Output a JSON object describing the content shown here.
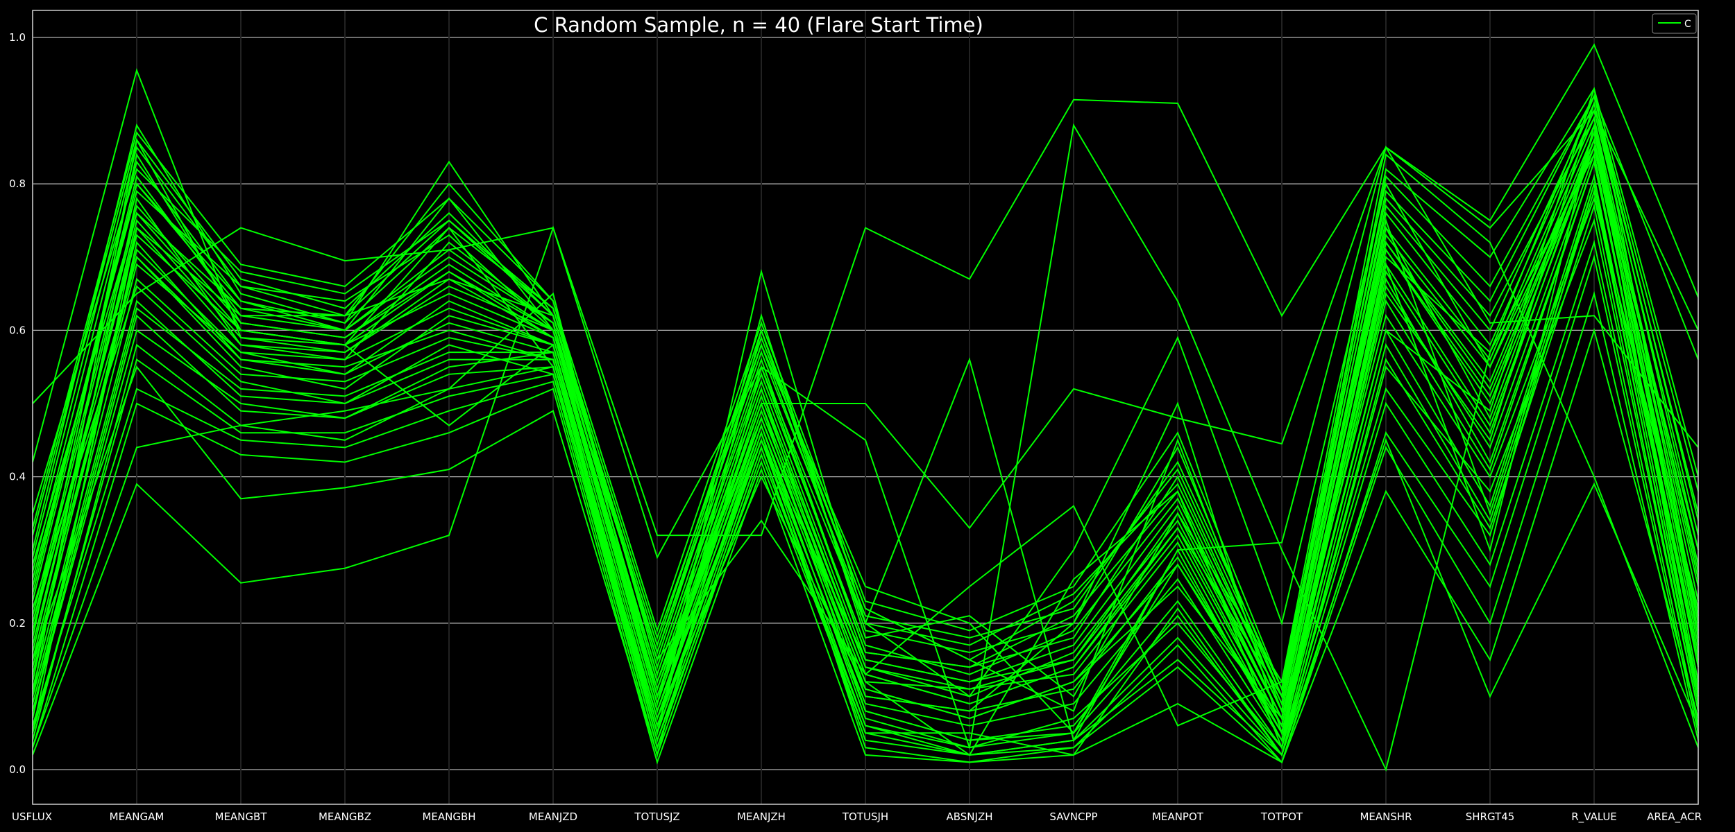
{
  "chart_data": {
    "type": "line",
    "subtype": "parallel-coordinates",
    "title": "C Random Sample, n = 40 (Flare Start Time)",
    "xlabel": "",
    "ylabel": "",
    "ylim": [
      -0.05,
      1.04
    ],
    "yticks": [
      0.0,
      0.2,
      0.4,
      0.6,
      0.8,
      1.0
    ],
    "ytick_labels": [
      "0.0",
      "0.2",
      "0.4",
      "0.6",
      "0.8",
      "1.0"
    ],
    "grid": "horizontal",
    "legend": {
      "placement": "top-right",
      "entries": [
        "C"
      ]
    },
    "colors": {
      "background": "#000000",
      "line": "#00ff00",
      "text": "#ffffff",
      "grid": "#b0b0b0",
      "axis_line": "#222222"
    },
    "categories": [
      "USFLUX",
      "MEANGAM",
      "MEANGBT",
      "MEANGBZ",
      "MEANGBH",
      "MEANJZD",
      "TOTUSJZ",
      "MEANJZH",
      "TOTUSJH",
      "ABSNJZH",
      "SAVNCPP",
      "MEANPOT",
      "TOTPOT",
      "MEANSHR",
      "SHRGT45",
      "R_VALUE",
      "AREA_ACR"
    ],
    "series": [
      {
        "class": "C",
        "values": [
          0.5,
          0.65,
          0.74,
          0.695,
          0.71,
          0.74,
          0.32,
          0.32,
          0.74,
          0.67,
          0.915,
          0.91,
          0.62,
          0.85,
          0.75,
          0.99,
          0.645
        ]
      },
      {
        "class": "C",
        "values": [
          0.03,
          0.44,
          0.47,
          0.49,
          0.52,
          0.65,
          0.1,
          0.5,
          0.5,
          0.33,
          0.52,
          0.48,
          0.445,
          0.85,
          0.74,
          0.9,
          0.6
        ]
      },
      {
        "class": "C",
        "values": [
          0.02,
          0.39,
          0.255,
          0.275,
          0.32,
          0.74,
          0.29,
          0.55,
          0.45,
          0.03,
          0.88,
          0.64,
          0.3,
          0.0,
          0.57,
          0.92,
          0.56
        ]
      },
      {
        "class": "C",
        "values": [
          0.42,
          0.955,
          0.59,
          0.58,
          0.47,
          0.58,
          0.05,
          0.68,
          0.2,
          0.56,
          0.04,
          0.3,
          0.31,
          0.85,
          0.61,
          0.62,
          0.44
        ]
      },
      {
        "class": "C",
        "values": [
          0.3,
          0.88,
          0.65,
          0.61,
          0.83,
          0.62,
          0.15,
          0.34,
          0.13,
          0.25,
          0.36,
          0.06,
          0.12,
          0.84,
          0.72,
          0.4,
          0.03
        ]
      },
      {
        "class": "C",
        "values": [
          0.15,
          0.55,
          0.37,
          0.385,
          0.41,
          0.49,
          0.02,
          0.55,
          0.2,
          0.1,
          0.3,
          0.59,
          0.2,
          0.8,
          0.55,
          0.85,
          0.3
        ]
      },
      {
        "class": "C",
        "values": [
          0.25,
          0.8,
          0.64,
          0.6,
          0.78,
          0.6,
          0.1,
          0.52,
          0.1,
          0.08,
          0.2,
          0.5,
          0.05,
          0.6,
          0.49,
          0.93,
          0.2
        ]
      },
      {
        "class": "C",
        "values": [
          0.1,
          0.86,
          0.6,
          0.58,
          0.74,
          0.55,
          0.05,
          0.6,
          0.22,
          0.15,
          0.08,
          0.45,
          0.08,
          0.75,
          0.35,
          0.8,
          0.15
        ]
      },
      {
        "class": "C",
        "values": [
          0.05,
          0.74,
          0.62,
          0.62,
          0.67,
          0.62,
          0.12,
          0.48,
          0.12,
          0.02,
          0.26,
          0.38,
          0.03,
          0.69,
          0.3,
          0.88,
          0.1
        ]
      },
      {
        "class": "C",
        "values": [
          0.2,
          0.7,
          0.55,
          0.52,
          0.62,
          0.58,
          0.08,
          0.45,
          0.15,
          0.12,
          0.15,
          0.33,
          0.1,
          0.72,
          0.52,
          0.86,
          0.25
        ]
      },
      {
        "class": "C",
        "values": [
          0.35,
          0.82,
          0.68,
          0.65,
          0.75,
          0.63,
          0.18,
          0.58,
          0.25,
          0.2,
          0.05,
          0.28,
          0.06,
          0.65,
          0.45,
          0.91,
          0.35
        ]
      },
      {
        "class": "C",
        "values": [
          0.08,
          0.6,
          0.5,
          0.48,
          0.55,
          0.57,
          0.04,
          0.42,
          0.05,
          0.05,
          0.02,
          0.22,
          0.02,
          0.55,
          0.38,
          0.75,
          0.08
        ]
      },
      {
        "class": "C",
        "values": [
          0.12,
          0.78,
          0.58,
          0.56,
          0.72,
          0.61,
          0.09,
          0.62,
          0.18,
          0.21,
          0.1,
          0.35,
          0.12,
          0.78,
          0.62,
          0.89,
          0.18
        ]
      },
      {
        "class": "C",
        "values": [
          0.18,
          0.84,
          0.61,
          0.59,
          0.68,
          0.59,
          0.11,
          0.5,
          0.08,
          0.04,
          0.05,
          0.3,
          0.04,
          0.7,
          0.57,
          0.84,
          0.12
        ]
      },
      {
        "class": "C",
        "values": [
          0.07,
          0.72,
          0.56,
          0.55,
          0.6,
          0.56,
          0.06,
          0.46,
          0.03,
          0.01,
          0.03,
          0.17,
          0.01,
          0.46,
          0.25,
          0.7,
          0.05
        ]
      },
      {
        "class": "C",
        "values": [
          0.22,
          0.66,
          0.53,
          0.5,
          0.58,
          0.54,
          0.07,
          0.4,
          0.11,
          0.07,
          0.12,
          0.25,
          0.07,
          0.62,
          0.4,
          0.78,
          0.22
        ]
      },
      {
        "class": "C",
        "values": [
          0.28,
          0.76,
          0.63,
          0.62,
          0.8,
          0.64,
          0.14,
          0.56,
          0.16,
          0.14,
          0.18,
          0.4,
          0.09,
          0.74,
          0.48,
          0.87,
          0.28
        ]
      },
      {
        "class": "C",
        "values": [
          0.04,
          0.58,
          0.47,
          0.45,
          0.52,
          0.55,
          0.03,
          0.44,
          0.04,
          0.02,
          0.04,
          0.15,
          0.02,
          0.45,
          0.1,
          0.39,
          0.06
        ]
      },
      {
        "class": "C",
        "values": [
          0.14,
          0.69,
          0.57,
          0.54,
          0.64,
          0.58,
          0.08,
          0.49,
          0.13,
          0.09,
          0.14,
          0.32,
          0.06,
          0.67,
          0.42,
          0.83,
          0.16
        ]
      },
      {
        "class": "C",
        "values": [
          0.26,
          0.79,
          0.66,
          0.64,
          0.73,
          0.6,
          0.16,
          0.57,
          0.21,
          0.18,
          0.22,
          0.42,
          0.11,
          0.76,
          0.58,
          0.9,
          0.32
        ]
      },
      {
        "class": "C",
        "values": [
          0.09,
          0.63,
          0.52,
          0.51,
          0.57,
          0.57,
          0.05,
          0.47,
          0.07,
          0.03,
          0.07,
          0.2,
          0.03,
          0.52,
          0.32,
          0.8,
          0.09
        ]
      },
      {
        "class": "C",
        "values": [
          0.32,
          0.86,
          0.67,
          0.63,
          0.76,
          0.62,
          0.17,
          0.6,
          0.19,
          0.16,
          0.2,
          0.44,
          0.1,
          0.81,
          0.66,
          0.92,
          0.38
        ]
      },
      {
        "class": "C",
        "values": [
          0.06,
          0.52,
          0.45,
          0.44,
          0.49,
          0.53,
          0.02,
          0.43,
          0.06,
          0.02,
          0.03,
          0.14,
          0.01,
          0.38,
          0.15,
          0.6,
          0.07
        ]
      },
      {
        "class": "C",
        "values": [
          0.16,
          0.75,
          0.59,
          0.57,
          0.66,
          0.6,
          0.09,
          0.51,
          0.14,
          0.1,
          0.16,
          0.34,
          0.07,
          0.71,
          0.5,
          0.85,
          0.2
        ]
      },
      {
        "class": "C",
        "values": [
          0.24,
          0.81,
          0.62,
          0.6,
          0.7,
          0.61,
          0.13,
          0.54,
          0.17,
          0.13,
          0.19,
          0.37,
          0.08,
          0.73,
          0.55,
          0.88,
          0.26
        ]
      },
      {
        "class": "C",
        "values": [
          0.11,
          0.67,
          0.54,
          0.53,
          0.59,
          0.56,
          0.06,
          0.45,
          0.09,
          0.06,
          0.09,
          0.26,
          0.04,
          0.6,
          0.36,
          0.81,
          0.11
        ]
      },
      {
        "class": "C",
        "values": [
          0.19,
          0.73,
          0.6,
          0.58,
          0.65,
          0.59,
          0.1,
          0.48,
          0.12,
          0.11,
          0.13,
          0.31,
          0.05,
          0.68,
          0.46,
          0.86,
          0.17
        ]
      },
      {
        "class": "C",
        "values": [
          0.27,
          0.83,
          0.64,
          0.61,
          0.74,
          0.63,
          0.15,
          0.58,
          0.2,
          0.17,
          0.24,
          0.39,
          0.09,
          0.77,
          0.6,
          0.91,
          0.3
        ]
      },
      {
        "class": "C",
        "values": [
          0.13,
          0.71,
          0.57,
          0.56,
          0.63,
          0.58,
          0.08,
          0.47,
          0.1,
          0.08,
          0.11,
          0.29,
          0.05,
          0.66,
          0.44,
          0.84,
          0.14
        ]
      },
      {
        "class": "C",
        "values": [
          0.21,
          0.77,
          0.61,
          0.59,
          0.69,
          0.6,
          0.12,
          0.53,
          0.15,
          0.12,
          0.17,
          0.36,
          0.07,
          0.72,
          0.53,
          0.87,
          0.23
        ]
      },
      {
        "class": "C",
        "values": [
          0.03,
          0.5,
          0.43,
          0.42,
          0.46,
          0.52,
          0.01,
          0.41,
          0.02,
          0.01,
          0.02,
          0.09,
          0.01,
          0.44,
          0.2,
          0.65,
          0.04
        ]
      },
      {
        "class": "C",
        "values": [
          0.33,
          0.87,
          0.69,
          0.66,
          0.78,
          0.64,
          0.19,
          0.61,
          0.23,
          0.19,
          0.25,
          0.46,
          0.11,
          0.82,
          0.7,
          0.93,
          0.4
        ]
      },
      {
        "class": "C",
        "values": [
          0.1,
          0.64,
          0.51,
          0.5,
          0.56,
          0.56,
          0.05,
          0.46,
          0.08,
          0.04,
          0.06,
          0.23,
          0.03,
          0.58,
          0.34,
          0.79,
          0.1
        ]
      },
      {
        "class": "C",
        "values": [
          0.17,
          0.74,
          0.58,
          0.57,
          0.67,
          0.59,
          0.09,
          0.5,
          0.13,
          0.09,
          0.14,
          0.33,
          0.06,
          0.69,
          0.47,
          0.85,
          0.19
        ]
      },
      {
        "class": "C",
        "values": [
          0.23,
          0.8,
          0.63,
          0.6,
          0.71,
          0.61,
          0.13,
          0.55,
          0.16,
          0.14,
          0.21,
          0.38,
          0.08,
          0.74,
          0.56,
          0.89,
          0.27
        ]
      },
      {
        "class": "C",
        "values": [
          0.05,
          0.56,
          0.46,
          0.46,
          0.51,
          0.54,
          0.03,
          0.44,
          0.05,
          0.02,
          0.04,
          0.18,
          0.02,
          0.5,
          0.28,
          0.72,
          0.06
        ]
      },
      {
        "class": "C",
        "values": [
          0.29,
          0.85,
          0.66,
          0.62,
          0.75,
          0.62,
          0.16,
          0.59,
          0.22,
          0.15,
          0.23,
          0.41,
          0.1,
          0.79,
          0.64,
          0.92,
          0.34
        ]
      },
      {
        "class": "C",
        "values": [
          0.15,
          0.7,
          0.56,
          0.54,
          0.61,
          0.57,
          0.07,
          0.48,
          0.11,
          0.07,
          0.12,
          0.28,
          0.05,
          0.64,
          0.41,
          0.83,
          0.15
        ]
      },
      {
        "class": "C",
        "values": [
          0.2,
          0.76,
          0.6,
          0.58,
          0.68,
          0.6,
          0.11,
          0.52,
          0.14,
          0.11,
          0.15,
          0.35,
          0.07,
          0.71,
          0.51,
          0.86,
          0.21
        ]
      },
      {
        "class": "C",
        "values": [
          0.08,
          0.62,
          0.49,
          0.48,
          0.54,
          0.55,
          0.04,
          0.45,
          0.06,
          0.03,
          0.05,
          0.21,
          0.02,
          0.56,
          0.33,
          0.77,
          0.08
        ]
      }
    ]
  }
}
